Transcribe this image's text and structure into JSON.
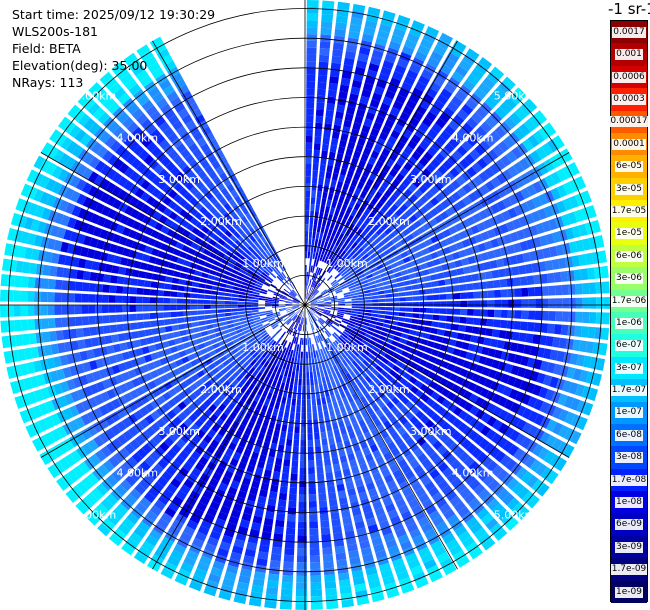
{
  "header": {
    "start_time": "Start time: 2025/09/12 19:30:29",
    "instrument": "WLS200s-181",
    "field": "Field: BETA",
    "elevation": "Elevation(deg): 35.00",
    "nrays": "NRays: 113"
  },
  "colorbar": {
    "title": "-1 sr-1",
    "labels": [
      "0.0017",
      "0.001",
      "0.0006",
      "0.0003",
      "0.00017",
      "0.0001",
      "6e-05",
      "3e-05",
      "1.7e-05",
      "1e-05",
      "6e-06",
      "3e-06",
      "1.7e-06",
      "1e-06",
      "6e-07",
      "3e-07",
      "1.7e-07",
      "1e-07",
      "6e-08",
      "3e-08",
      "1.7e-08",
      "1e-08",
      "6e-09",
      "3e-09",
      "1.7e-09",
      "1e-09"
    ],
    "colors": [
      "#8b0000",
      "#b20000",
      "#d40000",
      "#ff2000",
      "#ff5a00",
      "#ff8c00",
      "#ffb000",
      "#ffd000",
      "#fff000",
      "#e8ff10",
      "#c0ff40",
      "#98ff68",
      "#70ff90",
      "#48ffb8",
      "#20ffe0",
      "#00e8ff",
      "#00c0ff",
      "#0098ff",
      "#0070ff",
      "#0048ff",
      "#0020ff",
      "#0000e0",
      "#0000c0",
      "#0000a0",
      "#000080",
      "#000060"
    ]
  },
  "range_labels": [
    "1.00km",
    "2.00km",
    "3.00km",
    "4.00km",
    "5.00km"
  ],
  "scan": {
    "nrays": 113,
    "max_range_km": 5.0,
    "gap_azimuth_start_deg": 332,
    "gap_azimuth_end_deg": 360
  }
}
